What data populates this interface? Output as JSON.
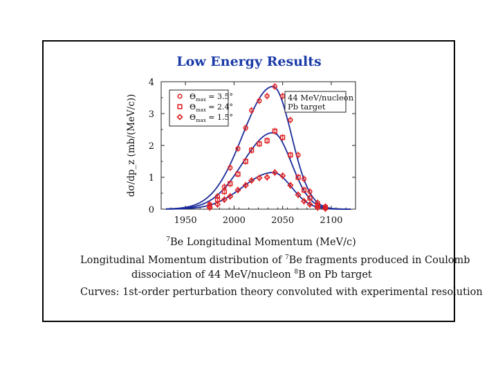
{
  "title": "Low Energy Results",
  "chart_data": {
    "type": "scatter",
    "xlabel_prefix": "7",
    "xlabel_main": "Be Longitudinal Momentum (MeV/c)",
    "ylabel": "dσ/dp_z (mb/(MeV/c))",
    "xlim": [
      1925,
      2125
    ],
    "ylim": [
      0,
      4
    ],
    "x_ticks": [
      1950,
      2000,
      2050,
      2100
    ],
    "y_ticks": [
      0,
      1,
      2,
      3,
      4
    ],
    "legend": [
      {
        "symbol": "circle",
        "label_sym": "Θ",
        "label_sub": "max",
        "label_val": "= 3.5°"
      },
      {
        "symbol": "square",
        "label_sym": "Θ",
        "label_sub": "max",
        "label_val": "= 2.4°"
      },
      {
        "symbol": "diamond",
        "label_sym": "Θ",
        "label_sub": "max",
        "label_val": "= 1.5°"
      }
    ],
    "annotation": [
      "44 MeV/nucleon",
      "Pb target"
    ],
    "series": [
      {
        "name": "Θmax = 3.5°",
        "marker": "circle",
        "scale": 3.85,
        "x": [
          1975,
          1983,
          1990,
          1996,
          2004,
          2012,
          2018,
          2026,
          2034,
          2042,
          2050,
          2058,
          2066,
          2072,
          2078,
          2086,
          2094
        ],
        "y": [
          0.15,
          0.4,
          0.7,
          1.3,
          1.9,
          2.55,
          3.1,
          3.4,
          3.55,
          3.85,
          3.55,
          2.8,
          1.7,
          0.95,
          0.55,
          0.2,
          0.08
        ]
      },
      {
        "name": "Θmax = 2.4°",
        "marker": "square",
        "scale": 2.4,
        "x": [
          1975,
          1983,
          1990,
          1996,
          2004,
          2012,
          2018,
          2026,
          2034,
          2042,
          2050,
          2058,
          2066,
          2072,
          2078,
          2086,
          2094
        ],
        "y": [
          0.1,
          0.3,
          0.55,
          0.8,
          1.1,
          1.5,
          1.85,
          2.05,
          2.15,
          2.45,
          2.25,
          1.7,
          1.0,
          0.6,
          0.35,
          0.12,
          0.05
        ]
      },
      {
        "name": "Θmax = 1.5°",
        "marker": "diamond",
        "scale": 1.15,
        "x": [
          1975,
          1983,
          1990,
          1996,
          2004,
          2012,
          2018,
          2026,
          2034,
          2042,
          2050,
          2058,
          2066,
          2072,
          2078,
          2086,
          2094
        ],
        "y": [
          0.05,
          0.15,
          0.3,
          0.4,
          0.6,
          0.75,
          0.9,
          0.98,
          1.0,
          1.15,
          1.05,
          0.75,
          0.45,
          0.25,
          0.15,
          0.05,
          0.02
        ]
      }
    ],
    "curve": {
      "peak_x": 2040,
      "sigma_left": 31,
      "sigma_right": 19
    }
  },
  "caption": {
    "line1_a": "Longitudinal Momentum distribution of ",
    "line1_sup": "7",
    "line1_b": "Be fragments produced in Coulomb",
    "line2_a": "dissociation of 44 MeV/nucleon ",
    "line2_sup": "8",
    "line2_b": "B on Pb target",
    "line3": "Curves: 1st-order perturbation theory convoluted with experimental resolution"
  },
  "colors": {
    "title": "#1a3aa8",
    "curve": "#1a2a9a",
    "marker": "#e02020",
    "text": "#111111"
  }
}
